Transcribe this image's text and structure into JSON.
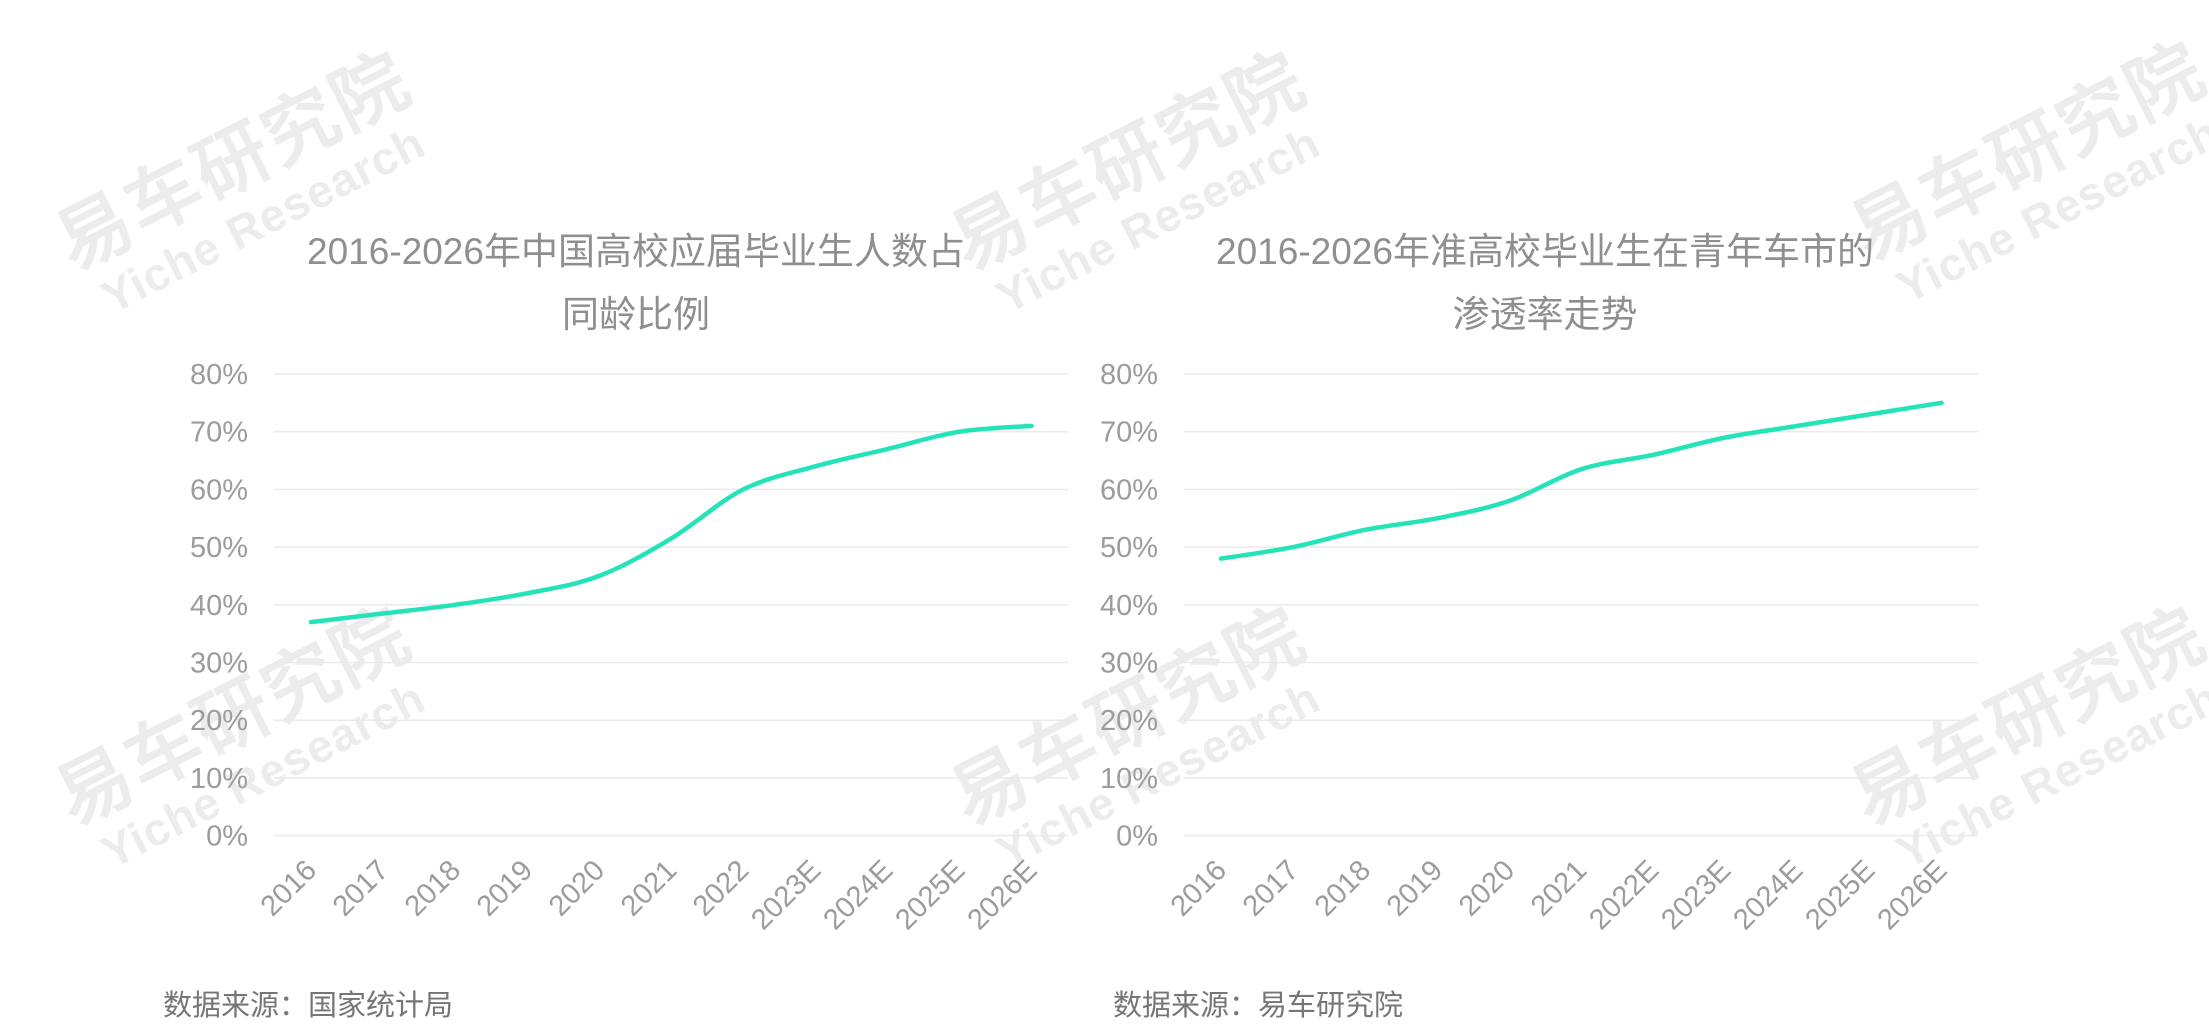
{
  "watermark": {
    "line1": "易车研究院",
    "line2": "Yiche Research"
  },
  "chart_data": [
    {
      "type": "line",
      "title": "2016-2026年中国高校应届毕业生人数占同龄比例",
      "title_lines": [
        "2016-2026年中国高校应届毕业生人数占",
        "同龄比例"
      ],
      "categories": [
        "2016",
        "2017",
        "2018",
        "2019",
        "2020",
        "2021",
        "2022",
        "2023E",
        "2024E",
        "2025E",
        "2026E"
      ],
      "values": [
        37,
        38.5,
        40,
        42,
        45,
        51.5,
        60,
        64,
        67,
        70,
        71
      ],
      "ylim": [
        0,
        80
      ],
      "y_ticks": [
        "80%",
        "70%",
        "60%",
        "50%",
        "40%",
        "30%",
        "20%",
        "10%",
        "0%"
      ],
      "grid": "horizontal-only",
      "legend": "none",
      "smooth": true,
      "line_color": "#25e3b9",
      "source": "数据来源：国家统计局"
    },
    {
      "type": "line",
      "title": "2016-2026年准高校毕业生在青年车市的渗透率走势",
      "title_lines": [
        "2016-2026年准高校毕业生在青年车市的",
        "渗透率走势"
      ],
      "categories": [
        "2016",
        "2017",
        "2018",
        "2019",
        "2020",
        "2021",
        "2022E",
        "2023E",
        "2024E",
        "2025E",
        "2026E"
      ],
      "values": [
        48,
        50,
        53,
        55,
        58,
        63.5,
        66,
        69,
        71,
        73,
        75
      ],
      "ylim": [
        0,
        80
      ],
      "y_ticks": [
        "80%",
        "70%",
        "60%",
        "50%",
        "40%",
        "30%",
        "20%",
        "10%",
        "0%"
      ],
      "grid": "horizontal-only",
      "legend": "none",
      "smooth": true,
      "line_color": "#25e3b9",
      "source": "数据来源：易车研究院"
    }
  ],
  "colors": {
    "background": "#ffffff",
    "title_text": "#8f8f8f",
    "axis_label": "#9c9c9c",
    "gridline": "#eaeaea",
    "source_text": "#767676",
    "watermark": "#ececec",
    "accent_line": "#25e3b9"
  }
}
